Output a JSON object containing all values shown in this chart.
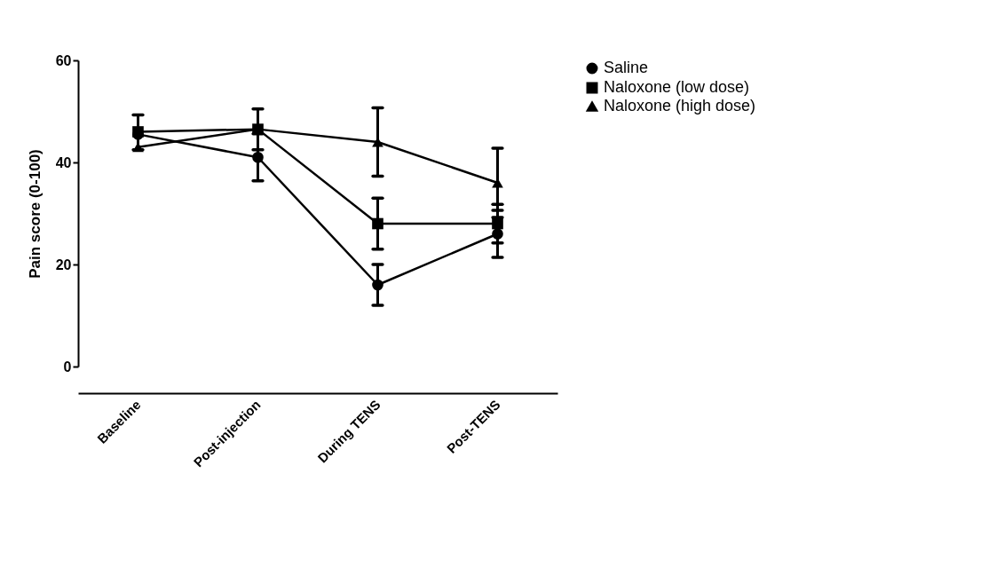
{
  "chart_data": {
    "type": "line",
    "ylabel": "Pain score  (0-100)",
    "categories": [
      "Baseline",
      "Post-injection",
      "During TENS",
      "Post-TENS"
    ],
    "ylim": [
      0,
      60
    ],
    "yticks": [
      0,
      20,
      40,
      60
    ],
    "grid": false,
    "legend": "top right",
    "series": [
      {
        "name": "Saline",
        "color": "#000000",
        "marker": "circle",
        "values": [
          45.5,
          41,
          16,
          26
        ],
        "errors": [
          [
            42.5,
            49.3
          ],
          4.6,
          4,
          4.6
        ]
      },
      {
        "name": "Naloxone (low dose)",
        "color": "#000000",
        "marker": "square",
        "values": [
          46,
          46.5,
          28,
          28
        ],
        "errors": [
          null,
          4,
          5,
          3.8
        ]
      },
      {
        "name": "Naloxone (high dose)",
        "color": "#000000",
        "marker": "triangle",
        "values": [
          43,
          46.5,
          44,
          36
        ],
        "errors": [
          null,
          null,
          6.7,
          6.8
        ]
      }
    ]
  }
}
